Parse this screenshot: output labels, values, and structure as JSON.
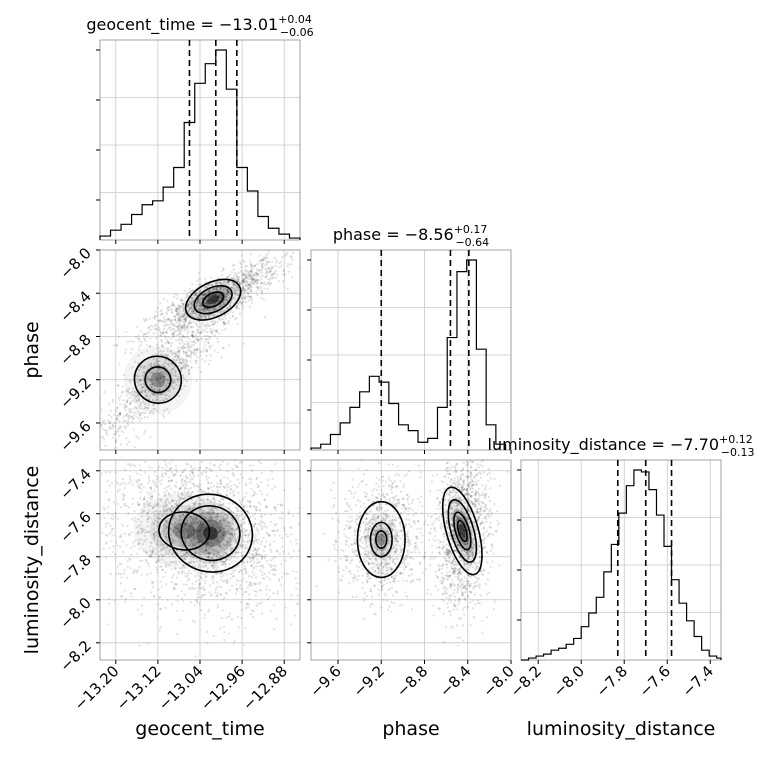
{
  "chart_data": {
    "type": "corner",
    "parameters": [
      {
        "name": "geocent_time",
        "title_prefix": "geocent_time = ",
        "median": "−13.01",
        "plus": "+0.04",
        "minus": "−0.06",
        "quantiles": [
          -13.06,
          -13.01,
          -12.97
        ],
        "range": [
          -13.23,
          -12.85
        ],
        "ticks": [
          -13.2,
          -13.12,
          -13.04,
          -12.96,
          -12.88
        ],
        "tick_labels": [
          "−13.20",
          "−13.12",
          "−13.04",
          "−12.96",
          "−12.88"
        ],
        "hist_bins": [
          -13.23,
          -13.21,
          -13.19,
          -13.17,
          -13.15,
          -13.13,
          -13.11,
          -13.09,
          -13.07,
          -13.05,
          -13.03,
          -13.01,
          -12.99,
          -12.97,
          -12.95,
          -12.93,
          -12.91,
          -12.89,
          -12.87,
          -12.85
        ],
        "hist_counts": [
          0.02,
          0.05,
          0.08,
          0.13,
          0.18,
          0.2,
          0.27,
          0.37,
          0.6,
          0.8,
          0.9,
          0.97,
          0.77,
          0.37,
          0.25,
          0.12,
          0.06,
          0.03,
          0.01
        ]
      },
      {
        "name": "phase",
        "title_prefix": "phase = ",
        "median": "−8.56",
        "plus": "+0.17",
        "minus": "−0.64",
        "quantiles": [
          -9.2,
          -8.56,
          -8.39
        ],
        "range": [
          -9.85,
          -8.0
        ],
        "ticks": [
          -9.6,
          -9.2,
          -8.8,
          -8.4,
          -8.0
        ],
        "tick_labels": [
          "−9.6",
          "−9.2",
          "−8.8",
          "−8.4",
          "−8.0"
        ],
        "hist_bins": [
          -9.85,
          -9.76,
          -9.67,
          -9.58,
          -9.49,
          -9.4,
          -9.31,
          -9.22,
          -9.13,
          -9.04,
          -8.95,
          -8.86,
          -8.77,
          -8.68,
          -8.59,
          -8.5,
          -8.41,
          -8.32,
          -8.23,
          -8.14,
          -8.05
        ],
        "hist_counts": [
          0.01,
          0.03,
          0.08,
          0.14,
          0.22,
          0.3,
          0.38,
          0.35,
          0.24,
          0.13,
          0.1,
          0.04,
          0.06,
          0.22,
          0.58,
          0.92,
          0.98,
          0.52,
          0.13,
          0.03
        ]
      },
      {
        "name": "luminosity_distance",
        "title_prefix": "luminosity_distance = ",
        "median": "−7.70",
        "plus": "+0.12",
        "minus": "−0.13",
        "quantiles": [
          -7.83,
          -7.7,
          -7.58
        ],
        "range": [
          -8.28,
          -7.35
        ],
        "ticks": [
          -8.2,
          -8.0,
          -7.8,
          -7.6,
          -7.4
        ],
        "tick_labels": [
          "−8.2",
          "−8.0",
          "−7.8",
          "−7.6",
          "−7.4"
        ],
        "hist_bins": [
          -8.28,
          -8.245,
          -8.21,
          -8.175,
          -8.14,
          -8.105,
          -8.07,
          -8.035,
          -8.0,
          -7.965,
          -7.93,
          -7.895,
          -7.86,
          -7.825,
          -7.79,
          -7.755,
          -7.72,
          -7.685,
          -7.65,
          -7.615,
          -7.58,
          -7.545,
          -7.51,
          -7.475,
          -7.44,
          -7.405,
          -7.37,
          -7.35
        ],
        "hist_counts": [
          0.0,
          0.01,
          0.02,
          0.03,
          0.05,
          0.06,
          0.08,
          0.11,
          0.17,
          0.24,
          0.32,
          0.45,
          0.59,
          0.75,
          0.89,
          0.97,
          0.96,
          0.87,
          0.74,
          0.58,
          0.41,
          0.29,
          0.2,
          0.12,
          0.05,
          0.02,
          0.01
        ]
      }
    ],
    "pairs": [
      {
        "x": "geocent_time",
        "y": "phase",
        "modes": [
          {
            "cx": -13.015,
            "cy": -8.46,
            "sx": 0.035,
            "sy": 0.1,
            "rho": 0.85
          },
          {
            "cx": -13.12,
            "cy": -9.2,
            "sx": 0.04,
            "sy": 0.2,
            "rho": 0.9
          }
        ],
        "contours": [
          {
            "level": 1,
            "mode": 0
          },
          {
            "level": 1.5,
            "mode": 0
          },
          {
            "level": 2,
            "mode": 0
          },
          {
            "level": 1.5,
            "mode": 1
          },
          {
            "level": 2,
            "mode": 1
          }
        ]
      },
      {
        "x": "geocent_time",
        "y": "luminosity_distance",
        "modes": [
          {
            "cx": -13.02,
            "cy": -7.69,
            "sx": 0.04,
            "sy": 0.09,
            "rho": -0.3
          },
          {
            "cx": -13.07,
            "cy": -7.68,
            "sx": 0.06,
            "sy": 0.11,
            "rho": -0.1
          }
        ],
        "contours": [
          {
            "level": 0.6,
            "mode": 0
          },
          {
            "level": 1.2,
            "mode": 0
          },
          {
            "level": 1.8,
            "mode": 1
          }
        ]
      },
      {
        "x": "phase",
        "y": "luminosity_distance",
        "modes": [
          {
            "cx": -8.45,
            "cy": -7.68,
            "sx": 0.07,
            "sy": 0.1,
            "rho": 0.1
          },
          {
            "cx": -9.2,
            "cy": -7.72,
            "sx": 0.1,
            "sy": 0.08,
            "rho": 0.0
          }
        ],
        "contours": [
          {
            "level": 0.5,
            "mode": 0
          },
          {
            "level": 1.1,
            "mode": 0
          },
          {
            "level": 1.7,
            "mode": 0
          },
          {
            "level": 2.1,
            "mode": 0
          },
          {
            "level": 0.4,
            "mode": 1
          },
          {
            "level": 1.6,
            "mode": 1
          },
          {
            "level": 2.1,
            "mode": 1
          }
        ]
      }
    ],
    "grid": true
  }
}
